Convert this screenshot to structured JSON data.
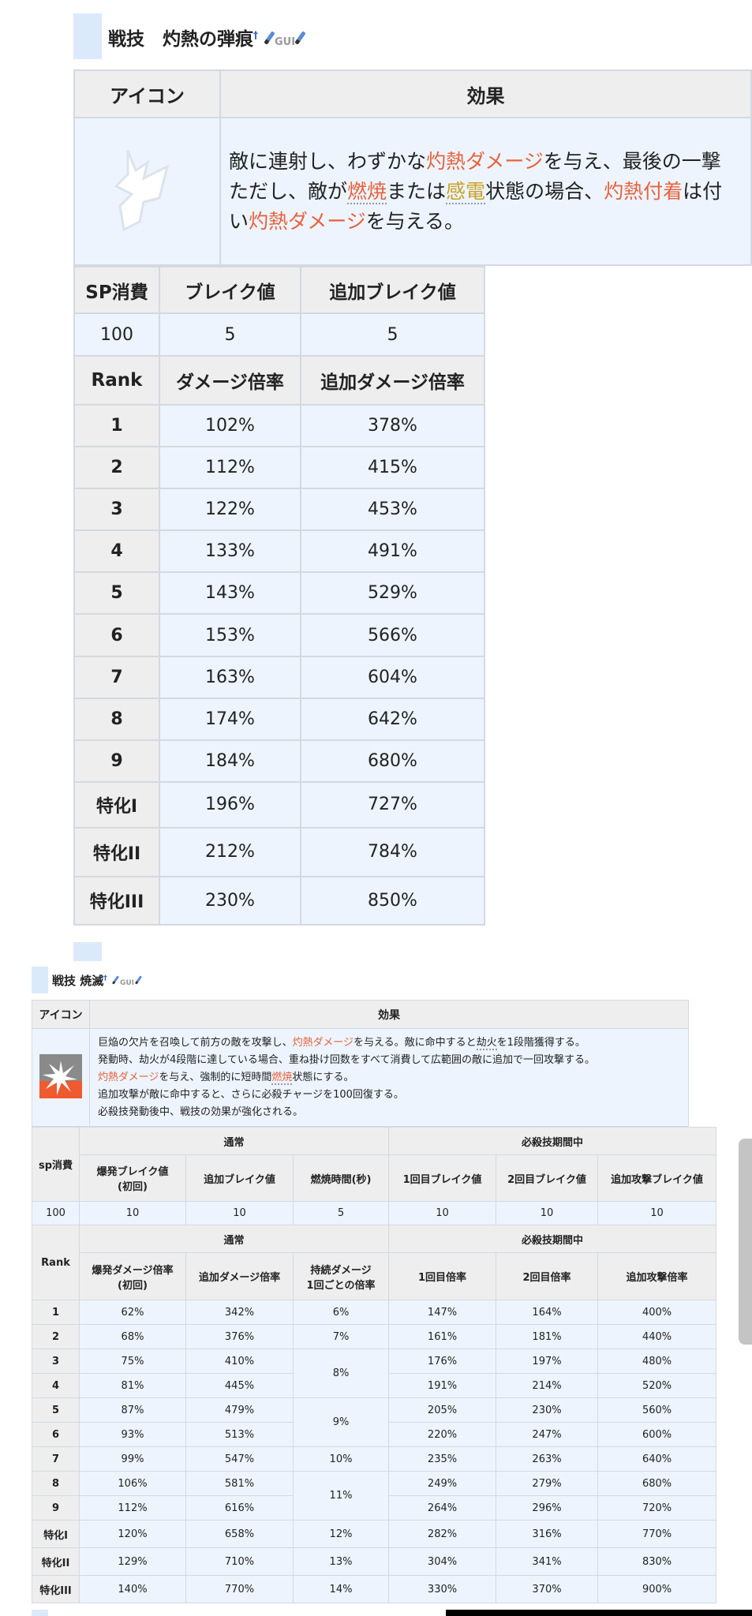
{
  "section1": {
    "title": "戦技　灼熱の弾痕",
    "dagger": "†",
    "gui": "GUI",
    "desc_table": {
      "icon_header": "アイコン",
      "effect_header": "効果",
      "lines": [
        [
          {
            "t": "敵に連射し、わずかな"
          },
          {
            "t": "灼熱ダメージ",
            "c": "fire"
          },
          {
            "t": "を与え、最後の一撃"
          }
        ],
        [
          {
            "t": "ただし、敵が"
          },
          {
            "t": "燃焼",
            "c": "fire ul"
          },
          {
            "t": "または"
          },
          {
            "t": "感電",
            "c": "elec ul"
          },
          {
            "t": "状態の場合、"
          },
          {
            "t": "灼熱付着",
            "c": "fire"
          },
          {
            "t": "は付"
          }
        ],
        [
          {
            "t": "い"
          },
          {
            "t": "灼熱ダメージ",
            "c": "fire"
          },
          {
            "t": "を与える。"
          }
        ]
      ]
    },
    "stats": {
      "header": [
        "SP消費",
        "ブレイク値",
        "追加ブレイク値"
      ],
      "values": [
        "100",
        "5",
        "5"
      ],
      "rank_header": [
        "Rank",
        "ダメージ倍率",
        "追加ダメージ倍率"
      ],
      "rows": [
        [
          "1",
          "102%",
          "378%"
        ],
        [
          "2",
          "112%",
          "415%"
        ],
        [
          "3",
          "122%",
          "453%"
        ],
        [
          "4",
          "133%",
          "491%"
        ],
        [
          "5",
          "143%",
          "529%"
        ],
        [
          "6",
          "153%",
          "566%"
        ],
        [
          "7",
          "163%",
          "604%"
        ],
        [
          "8",
          "174%",
          "642%"
        ],
        [
          "9",
          "184%",
          "680%"
        ],
        [
          "特化I",
          "196%",
          "727%"
        ],
        [
          "特化II",
          "212%",
          "784%"
        ],
        [
          "特化III",
          "230%",
          "850%"
        ]
      ]
    }
  },
  "section2": {
    "title": "戦技 焼滅",
    "dagger": "†",
    "gui": "GUI",
    "desc_table": {
      "icon_header": "アイコン",
      "effect_header": "効果",
      "lines": [
        [
          {
            "t": "巨焔の欠片を召喚して前方の敵を攻撃し、"
          },
          {
            "t": "灼熱ダメージ",
            "c": "fire"
          },
          {
            "t": "を与える。敵に命中すると"
          },
          {
            "t": "劫火",
            "c": "ul"
          },
          {
            "t": "を1段階獲得する。"
          }
        ],
        [
          {
            "t": "発動時、劫火が4段階に達している場合、重ね掛け回数をすべて消費して広範囲の敵に追加で一回攻撃する。"
          }
        ],
        [
          {
            "t": "灼熱ダメージ",
            "c": "fire"
          },
          {
            "t": "を与え、強制的に短時間"
          },
          {
            "t": "燃焼",
            "c": "fire ul"
          },
          {
            "t": "状態にする。"
          }
        ],
        [
          {
            "t": "追加攻撃が敵に命中すると、さらに必殺チャージを100回復する。"
          }
        ],
        [
          {
            "t": "必殺技発動後中、戦技の効果が強化される。"
          }
        ]
      ]
    },
    "stats": {
      "sp_label": "sp消費",
      "group_normal": "通常",
      "group_ult": "必殺技期間中",
      "break_headers": [
        "爆発ブレイク値\n(初回)",
        "追加ブレイク値",
        "燃焼時間(秒)",
        "1回目ブレイク値",
        "2回目ブレイク値",
        "追加攻撃ブレイク値"
      ],
      "break_values": [
        "100",
        "10",
        "10",
        "5",
        "10",
        "10",
        "10"
      ],
      "rank_label": "Rank",
      "rate_headers": [
        "爆発ダメージ倍率\n(初回)",
        "追加ダメージ倍率",
        "持続ダメージ\n1回ごとの倍率",
        "1回目倍率",
        "2回目倍率",
        "追加攻撃倍率"
      ],
      "rows": [
        [
          "1",
          "62%",
          "342%",
          "6%",
          "147%",
          "164%",
          "400%"
        ],
        [
          "2",
          "68%",
          "376%",
          "7%",
          "161%",
          "181%",
          "440%"
        ],
        [
          "3",
          "75%",
          "410%",
          "8%",
          "176%",
          "197%",
          "480%"
        ],
        [
          "4",
          "81%",
          "445%",
          null,
          "191%",
          "214%",
          "520%"
        ],
        [
          "5",
          "87%",
          "479%",
          "9%",
          "205%",
          "230%",
          "560%"
        ],
        [
          "6",
          "93%",
          "513%",
          null,
          "220%",
          "247%",
          "600%"
        ],
        [
          "7",
          "99%",
          "547%",
          "10%",
          "235%",
          "263%",
          "640%"
        ],
        [
          "8",
          "106%",
          "581%",
          "11%",
          "249%",
          "279%",
          "680%"
        ],
        [
          "9",
          "112%",
          "616%",
          null,
          "264%",
          "296%",
          "720%"
        ],
        [
          "特化I",
          "120%",
          "658%",
          "12%",
          "282%",
          "316%",
          "770%"
        ],
        [
          "特化II",
          "129%",
          "710%",
          "13%",
          "304%",
          "341%",
          "830%"
        ],
        [
          "特化III",
          "140%",
          "770%",
          "14%",
          "330%",
          "370%",
          "900%"
        ]
      ]
    }
  },
  "colors": {
    "fire": "#e8613c",
    "electric": "#c9a227",
    "header_bg": "#eeeeee",
    "cell_bg": "#edf4fd",
    "heading_block": "#dbeafb"
  }
}
